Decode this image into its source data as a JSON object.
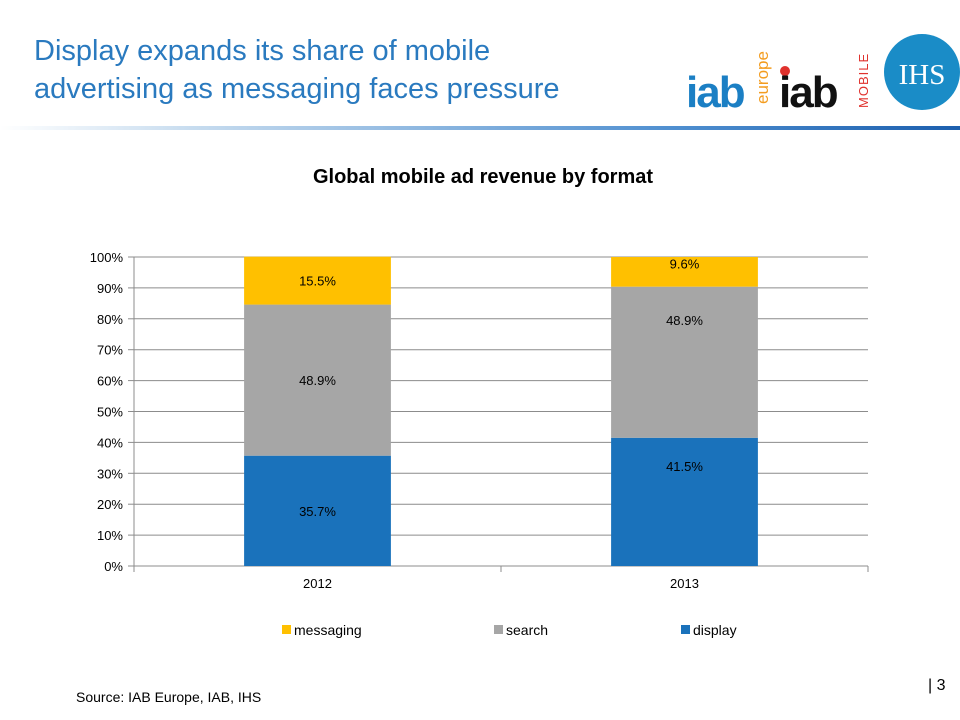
{
  "slide": {
    "title_line1": "Display expands its share of mobile",
    "title_line2": "advertising as messaging faces pressure",
    "source": "Source: IAB Europe, IAB, IHS",
    "page_number": "| 3"
  },
  "logos": {
    "iab_europe": {
      "text": "iab",
      "tag": "europe"
    },
    "iab_mobile": {
      "text": "iab",
      "tag": "MOBILE"
    },
    "ihs": {
      "text": "IHS"
    }
  },
  "colors": {
    "title": "#2a7abf",
    "messaging": "#ffc000",
    "search": "#a6a6a6",
    "display": "#1a72bb",
    "iab_blue": "#1b7fc4",
    "iab_red": "#e0322d",
    "iab_orange": "#f39c1f"
  },
  "chart_data": {
    "type": "bar",
    "stacked": true,
    "title": "Global mobile ad revenue by format",
    "categories": [
      "2012",
      "2013"
    ],
    "series": [
      {
        "name": "messaging",
        "values": [
          15.5,
          9.6
        ],
        "labels": [
          "15.5%",
          "9.6%"
        ],
        "color": "#ffc000"
      },
      {
        "name": "search",
        "values": [
          48.9,
          48.9
        ],
        "labels": [
          "48.9%",
          "48.9%"
        ],
        "color": "#a6a6a6"
      },
      {
        "name": "display",
        "values": [
          35.7,
          41.5
        ],
        "labels": [
          "35.7%",
          "41.5%"
        ],
        "color": "#1a72bb"
      }
    ],
    "ylim": [
      0,
      100
    ],
    "yticks": [
      "0%",
      "10%",
      "20%",
      "30%",
      "40%",
      "50%",
      "60%",
      "70%",
      "80%",
      "90%",
      "100%"
    ],
    "xlabel": "",
    "ylabel": "",
    "grid": true,
    "legend": "bottom"
  }
}
